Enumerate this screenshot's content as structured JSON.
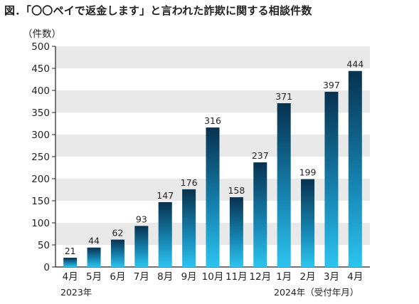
{
  "title": "図．「〇〇ペイで返金します」と言われた詐欺に関する相談件数",
  "chart_data": {
    "type": "bar",
    "ylabel": "（件数）",
    "ylim": [
      0,
      500
    ],
    "yticks": [
      0,
      50,
      100,
      150,
      200,
      250,
      300,
      350,
      400,
      450,
      500
    ],
    "categories": [
      "4月",
      "5月",
      "6月",
      "7月",
      "8月",
      "9月",
      "10月",
      "11月",
      "12月",
      "1月",
      "2月",
      "3月",
      "4月"
    ],
    "values": [
      21,
      44,
      62,
      93,
      147,
      176,
      316,
      158,
      237,
      371,
      199,
      397,
      444
    ],
    "year_labels": {
      "start": "2023年",
      "end": "2024年（受付年月）"
    },
    "grid": "alternating horizontal bands",
    "colors": {
      "bar_top": "#08324f",
      "bar_bottom": "#2cc4f0",
      "band": "#e9e9e9",
      "axis": "#231f20"
    }
  }
}
